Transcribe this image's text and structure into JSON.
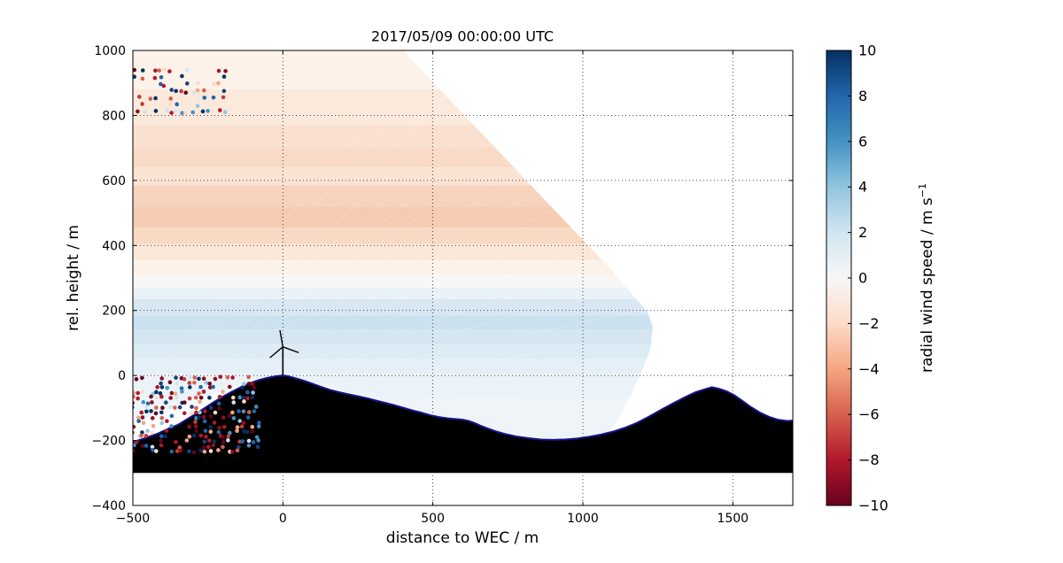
{
  "figure": {
    "title": "2017/05/09 00:00:00 UTC",
    "xlabel": "distance to WEC / m",
    "ylabel": "rel. height / m",
    "colorbar_label_main": "radial wind speed / m s",
    "colorbar_label_exp": "−1"
  },
  "chart_data": {
    "type": "heatmap",
    "title": "2017/05/09 00:00:00 UTC",
    "xlabel": "distance to WEC / m",
    "ylabel": "rel. height / m",
    "xlim": [
      -500,
      1700
    ],
    "ylim": [
      -400,
      1000
    ],
    "xticks": [
      -500,
      0,
      500,
      1000,
      1500
    ],
    "yticks": [
      -400,
      -200,
      0,
      200,
      400,
      600,
      800,
      1000
    ],
    "grid": true,
    "colorbar": {
      "label": "radial wind speed / m s⁻¹",
      "min": -10,
      "max": 10,
      "ticks": [
        10,
        8,
        6,
        4,
        2,
        0,
        -2,
        -4,
        -6,
        -8,
        -10
      ],
      "colormap": "RdBu",
      "stops": [
        "#053061",
        "#2166ac",
        "#4393c3",
        "#92c5de",
        "#d1e5f0",
        "#f7f7f7",
        "#fddbc7",
        "#f4a582",
        "#d6604d",
        "#b2182b",
        "#67001f"
      ]
    },
    "scan": {
      "description": "Lidar RHI scan fan of radial wind speed; light orange layers (negative, ~-1 to -2.2 m/s) aloft between 300 and 1000 m, light blue layers (positive, ~+1 to +2.2 m/s) below 270 m",
      "origin": [
        -560,
        -140
      ],
      "ray_angles": [
        -2,
        50,
        2.6
      ],
      "boundary": [
        [
          -500,
          1000
        ],
        [
          400,
          1000
        ],
        [
          1100,
          320
        ],
        [
          1215,
          195
        ],
        [
          1233,
          150
        ],
        [
          1225,
          80
        ],
        [
          1195,
          10
        ],
        [
          1160,
          -60
        ],
        [
          1120,
          -130
        ],
        [
          1075,
          -190
        ],
        [
          900,
          -195
        ],
        [
          700,
          -175
        ],
        [
          550,
          -140
        ],
        [
          400,
          -100
        ],
        [
          250,
          -60
        ],
        [
          120,
          -28
        ],
        [
          0,
          -5
        ],
        [
          -130,
          -25
        ],
        [
          -280,
          -70
        ],
        [
          -400,
          -110
        ],
        [
          -500,
          -145
        ]
      ],
      "bands": [
        [
          1000,
          880,
          "#fcf2ea",
          -0.5
        ],
        [
          880,
          770,
          "#fbe9dc",
          -1.0
        ],
        [
          770,
          700,
          "#f9e0cf",
          -1.3
        ],
        [
          700,
          640,
          "#f8dac6",
          -1.6
        ],
        [
          640,
          585,
          "#fae3d3",
          -1.2
        ],
        [
          585,
          520,
          "#f7d3bd",
          -1.9
        ],
        [
          520,
          455,
          "#f5ccb2",
          -2.2
        ],
        [
          455,
          405,
          "#f8d9c4",
          -1.5
        ],
        [
          405,
          355,
          "#fbe7d8",
          -0.9
        ],
        [
          355,
          310,
          "#fdf2e9",
          -0.4
        ],
        [
          310,
          270,
          "#f7f7f5",
          0.0
        ],
        [
          270,
          235,
          "#e9f2f8",
          0.5
        ],
        [
          235,
          185,
          "#d8e7f2",
          1.5
        ],
        [
          185,
          140,
          "#cce1ef",
          2.2
        ],
        [
          140,
          95,
          "#d4e6f1",
          1.8
        ],
        [
          95,
          50,
          "#ddebf4",
          1.4
        ],
        [
          50,
          5,
          "#e5eff7",
          1.0
        ],
        [
          5,
          -70,
          "#ebf3f8",
          0.8
        ],
        [
          -70,
          -200,
          "#eff4f9",
          0.6
        ]
      ]
    },
    "terrain": {
      "fill": "#000000",
      "edge_color": "#15158c",
      "base": -300,
      "profile": [
        [
          -500,
          -205
        ],
        [
          -460,
          -193
        ],
        [
          -420,
          -180
        ],
        [
          -380,
          -163
        ],
        [
          -350,
          -152
        ],
        [
          -320,
          -135
        ],
        [
          -290,
          -118
        ],
        [
          -260,
          -100
        ],
        [
          -230,
          -82
        ],
        [
          -200,
          -65
        ],
        [
          -170,
          -50
        ],
        [
          -140,
          -36
        ],
        [
          -110,
          -24
        ],
        [
          -80,
          -14
        ],
        [
          -50,
          -7
        ],
        [
          -20,
          -2
        ],
        [
          0,
          0
        ],
        [
          15,
          -2
        ],
        [
          40,
          -8
        ],
        [
          70,
          -16
        ],
        [
          100,
          -26
        ],
        [
          130,
          -36
        ],
        [
          160,
          -45
        ],
        [
          190,
          -52
        ],
        [
          220,
          -58
        ],
        [
          250,
          -64
        ],
        [
          280,
          -70
        ],
        [
          310,
          -77
        ],
        [
          340,
          -84
        ],
        [
          370,
          -91
        ],
        [
          400,
          -99
        ],
        [
          430,
          -107
        ],
        [
          460,
          -114
        ],
        [
          490,
          -122
        ],
        [
          520,
          -128
        ],
        [
          550,
          -132
        ],
        [
          575,
          -134
        ],
        [
          600,
          -136
        ],
        [
          620,
          -140
        ],
        [
          640,
          -147
        ],
        [
          660,
          -155
        ],
        [
          685,
          -164
        ],
        [
          710,
          -172
        ],
        [
          740,
          -180
        ],
        [
          780,
          -188
        ],
        [
          820,
          -193
        ],
        [
          860,
          -197
        ],
        [
          900,
          -198
        ],
        [
          940,
          -197
        ],
        [
          980,
          -194
        ],
        [
          1020,
          -189
        ],
        [
          1060,
          -182
        ],
        [
          1100,
          -173
        ],
        [
          1140,
          -161
        ],
        [
          1180,
          -146
        ],
        [
          1220,
          -127
        ],
        [
          1260,
          -106
        ],
        [
          1300,
          -86
        ],
        [
          1340,
          -67
        ],
        [
          1375,
          -52
        ],
        [
          1405,
          -43
        ],
        [
          1430,
          -36
        ],
        [
          1455,
          -41
        ],
        [
          1480,
          -49
        ],
        [
          1505,
          -61
        ],
        [
          1530,
          -77
        ],
        [
          1560,
          -97
        ],
        [
          1590,
          -114
        ],
        [
          1620,
          -127
        ],
        [
          1650,
          -136
        ],
        [
          1680,
          -140
        ],
        [
          1700,
          -139
        ]
      ]
    },
    "turbine": {
      "x": 0,
      "base": 0,
      "hub_height": 88,
      "blade_length": 52,
      "blade_angles": [
        100,
        220,
        340
      ]
    },
    "noise_clusters": [
      {
        "name": "upper-left-speckle",
        "seed": 7,
        "x_left": -500,
        "x_right": -180,
        "y_top": 938,
        "y_bottom": 795,
        "row_step": 21,
        "col_step": 18,
        "density": 0.45,
        "radius": 2.3,
        "palette": [
          "#67001f",
          "#8f0e21",
          "#b2182b",
          "#b2182b",
          "#c43c3c",
          "#d6604d",
          "#f4a582",
          "#053061",
          "#053061",
          "#16427e",
          "#2166ac",
          "#2166ac",
          "#4393c3",
          "#92c5de",
          "#d1e5f0",
          "#fddbc7"
        ]
      },
      {
        "name": "lower-left-speckle",
        "seed": 13,
        "x_left": -500,
        "x_right": -70,
        "y_top": -8,
        "y_bottom": -235,
        "row_step": 15,
        "col_step": 16,
        "density": 0.5,
        "radius": 2.3,
        "palette": [
          "#67001f",
          "#67001f",
          "#8f0e21",
          "#b2182b",
          "#b2182b",
          "#c43c3c",
          "#d6604d",
          "#f4a582",
          "#053061",
          "#053061",
          "#16427e",
          "#2166ac",
          "#2166ac",
          "#4393c3",
          "#92c5de",
          "#d1e5f0",
          "#fddbc7"
        ]
      }
    ]
  }
}
